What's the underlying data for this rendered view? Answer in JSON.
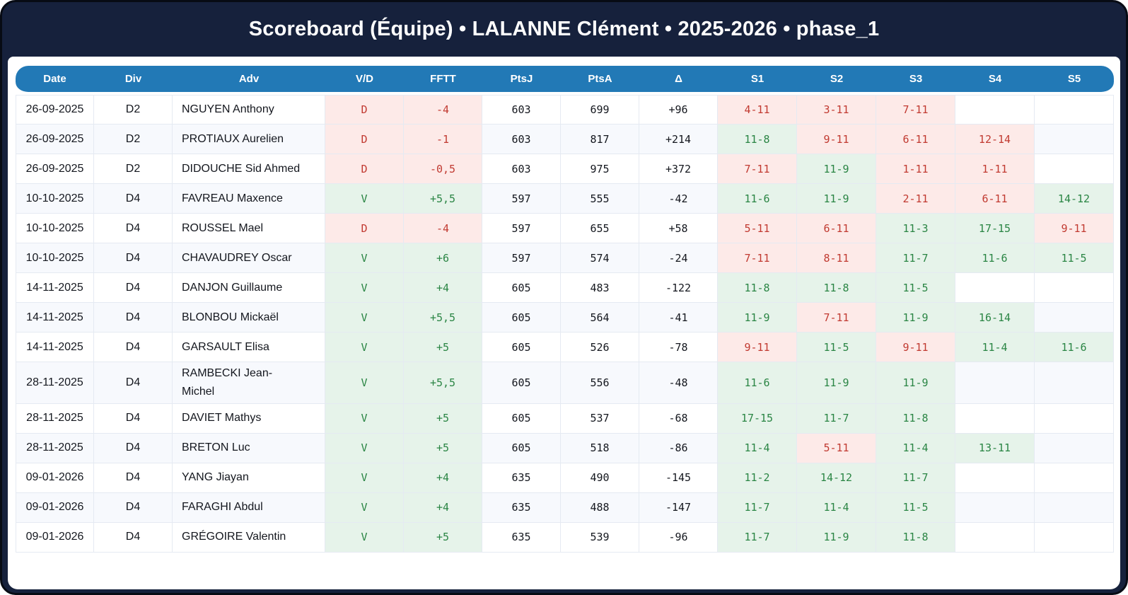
{
  "title": "Scoreboard (Équipe) • LALANNE Clément • 2025-2026 • phase_1",
  "colors": {
    "frame_navy": "#16213c",
    "header_blue": "#2279b6",
    "win_text": "#2a8544",
    "win_bg": "#e6f3ea",
    "loss_text": "#c13a31",
    "loss_bg": "#fdeae8",
    "stripe_bg": "#f7f9fd"
  },
  "table": {
    "columns": [
      "Date",
      "Div",
      "Adv",
      "V/D",
      "FFTT",
      "PtsJ",
      "PtsA",
      "Δ",
      "S1",
      "S2",
      "S3",
      "S4",
      "S5"
    ],
    "column_keys": [
      "date",
      "div",
      "adv",
      "vd",
      "fftt",
      "ptsj",
      "ptsa",
      "delta",
      "s1",
      "s2",
      "s3",
      "s4",
      "s5"
    ],
    "rows": [
      {
        "date": "26-09-2025",
        "div": "D2",
        "adv": "NGUYEN Anthony",
        "vd": "D",
        "fftt": "-4",
        "ptsj": "603",
        "ptsa": "699",
        "delta": "+96",
        "sets": [
          {
            "score": "4-11",
            "result": "loss"
          },
          {
            "score": "3-11",
            "result": "loss"
          },
          {
            "score": "7-11",
            "result": "loss"
          },
          {
            "score": "",
            "result": "none"
          },
          {
            "score": "",
            "result": "none"
          }
        ]
      },
      {
        "date": "26-09-2025",
        "div": "D2",
        "adv": "PROTIAUX Aurelien",
        "vd": "D",
        "fftt": "-1",
        "ptsj": "603",
        "ptsa": "817",
        "delta": "+214",
        "sets": [
          {
            "score": "11-8",
            "result": "win"
          },
          {
            "score": "9-11",
            "result": "loss"
          },
          {
            "score": "6-11",
            "result": "loss"
          },
          {
            "score": "12-14",
            "result": "loss"
          },
          {
            "score": "",
            "result": "none"
          }
        ]
      },
      {
        "date": "26-09-2025",
        "div": "D2",
        "adv": "DIDOUCHE Sid Ahmed",
        "vd": "D",
        "fftt": "-0,5",
        "ptsj": "603",
        "ptsa": "975",
        "delta": "+372",
        "sets": [
          {
            "score": "7-11",
            "result": "loss"
          },
          {
            "score": "11-9",
            "result": "win"
          },
          {
            "score": "1-11",
            "result": "loss"
          },
          {
            "score": "1-11",
            "result": "loss"
          },
          {
            "score": "",
            "result": "none"
          }
        ]
      },
      {
        "date": "10-10-2025",
        "div": "D4",
        "adv": "FAVREAU Maxence",
        "vd": "V",
        "fftt": "+5,5",
        "ptsj": "597",
        "ptsa": "555",
        "delta": "-42",
        "sets": [
          {
            "score": "11-6",
            "result": "win"
          },
          {
            "score": "11-9",
            "result": "win"
          },
          {
            "score": "2-11",
            "result": "loss"
          },
          {
            "score": "6-11",
            "result": "loss"
          },
          {
            "score": "14-12",
            "result": "win"
          }
        ]
      },
      {
        "date": "10-10-2025",
        "div": "D4",
        "adv": "ROUSSEL Mael",
        "vd": "D",
        "fftt": "-4",
        "ptsj": "597",
        "ptsa": "655",
        "delta": "+58",
        "sets": [
          {
            "score": "5-11",
            "result": "loss"
          },
          {
            "score": "6-11",
            "result": "loss"
          },
          {
            "score": "11-3",
            "result": "win"
          },
          {
            "score": "17-15",
            "result": "win"
          },
          {
            "score": "9-11",
            "result": "loss"
          }
        ]
      },
      {
        "date": "10-10-2025",
        "div": "D4",
        "adv": "CHAVAUDREY Oscar",
        "vd": "V",
        "fftt": "+6",
        "ptsj": "597",
        "ptsa": "574",
        "delta": "-24",
        "sets": [
          {
            "score": "7-11",
            "result": "loss"
          },
          {
            "score": "8-11",
            "result": "loss"
          },
          {
            "score": "11-7",
            "result": "win"
          },
          {
            "score": "11-6",
            "result": "win"
          },
          {
            "score": "11-5",
            "result": "win"
          }
        ]
      },
      {
        "date": "14-11-2025",
        "div": "D4",
        "adv": "DANJON Guillaume",
        "vd": "V",
        "fftt": "+4",
        "ptsj": "605",
        "ptsa": "483",
        "delta": "-122",
        "sets": [
          {
            "score": "11-8",
            "result": "win"
          },
          {
            "score": "11-8",
            "result": "win"
          },
          {
            "score": "11-5",
            "result": "win"
          },
          {
            "score": "",
            "result": "none"
          },
          {
            "score": "",
            "result": "none"
          }
        ]
      },
      {
        "date": "14-11-2025",
        "div": "D4",
        "adv": "BLONBOU Mickaël",
        "vd": "V",
        "fftt": "+5,5",
        "ptsj": "605",
        "ptsa": "564",
        "delta": "-41",
        "sets": [
          {
            "score": "11-9",
            "result": "win"
          },
          {
            "score": "7-11",
            "result": "loss"
          },
          {
            "score": "11-9",
            "result": "win"
          },
          {
            "score": "16-14",
            "result": "win"
          },
          {
            "score": "",
            "result": "none"
          }
        ]
      },
      {
        "date": "14-11-2025",
        "div": "D4",
        "adv": "GARSAULT Elisa",
        "vd": "V",
        "fftt": "+5",
        "ptsj": "605",
        "ptsa": "526",
        "delta": "-78",
        "sets": [
          {
            "score": "9-11",
            "result": "loss"
          },
          {
            "score": "11-5",
            "result": "win"
          },
          {
            "score": "9-11",
            "result": "loss"
          },
          {
            "score": "11-4",
            "result": "win"
          },
          {
            "score": "11-6",
            "result": "win"
          }
        ]
      },
      {
        "date": "28-11-2025",
        "div": "D4",
        "adv": "RAMBECKI Jean-Michel",
        "vd": "V",
        "fftt": "+5,5",
        "ptsj": "605",
        "ptsa": "556",
        "delta": "-48",
        "sets": [
          {
            "score": "11-6",
            "result": "win"
          },
          {
            "score": "11-9",
            "result": "win"
          },
          {
            "score": "11-9",
            "result": "win"
          },
          {
            "score": "",
            "result": "none"
          },
          {
            "score": "",
            "result": "none"
          }
        ]
      },
      {
        "date": "28-11-2025",
        "div": "D4",
        "adv": "DAVIET Mathys",
        "vd": "V",
        "fftt": "+5",
        "ptsj": "605",
        "ptsa": "537",
        "delta": "-68",
        "sets": [
          {
            "score": "17-15",
            "result": "win"
          },
          {
            "score": "11-7",
            "result": "win"
          },
          {
            "score": "11-8",
            "result": "win"
          },
          {
            "score": "",
            "result": "none"
          },
          {
            "score": "",
            "result": "none"
          }
        ]
      },
      {
        "date": "28-11-2025",
        "div": "D4",
        "adv": "BRETON Luc",
        "vd": "V",
        "fftt": "+5",
        "ptsj": "605",
        "ptsa": "518",
        "delta": "-86",
        "sets": [
          {
            "score": "11-4",
            "result": "win"
          },
          {
            "score": "5-11",
            "result": "loss"
          },
          {
            "score": "11-4",
            "result": "win"
          },
          {
            "score": "13-11",
            "result": "win"
          },
          {
            "score": "",
            "result": "none"
          }
        ]
      },
      {
        "date": "09-01-2026",
        "div": "D4",
        "adv": "YANG Jiayan",
        "vd": "V",
        "fftt": "+4",
        "ptsj": "635",
        "ptsa": "490",
        "delta": "-145",
        "sets": [
          {
            "score": "11-2",
            "result": "win"
          },
          {
            "score": "14-12",
            "result": "win"
          },
          {
            "score": "11-7",
            "result": "win"
          },
          {
            "score": "",
            "result": "none"
          },
          {
            "score": "",
            "result": "none"
          }
        ]
      },
      {
        "date": "09-01-2026",
        "div": "D4",
        "adv": "FARAGHI Abdul",
        "vd": "V",
        "fftt": "+4",
        "ptsj": "635",
        "ptsa": "488",
        "delta": "-147",
        "sets": [
          {
            "score": "11-7",
            "result": "win"
          },
          {
            "score": "11-4",
            "result": "win"
          },
          {
            "score": "11-5",
            "result": "win"
          },
          {
            "score": "",
            "result": "none"
          },
          {
            "score": "",
            "result": "none"
          }
        ]
      },
      {
        "date": "09-01-2026",
        "div": "D4",
        "adv": "GRÉGOIRE Valentin",
        "vd": "V",
        "fftt": "+5",
        "ptsj": "635",
        "ptsa": "539",
        "delta": "-96",
        "sets": [
          {
            "score": "11-7",
            "result": "win"
          },
          {
            "score": "11-9",
            "result": "win"
          },
          {
            "score": "11-8",
            "result": "win"
          },
          {
            "score": "",
            "result": "none"
          },
          {
            "score": "",
            "result": "none"
          }
        ]
      }
    ]
  }
}
